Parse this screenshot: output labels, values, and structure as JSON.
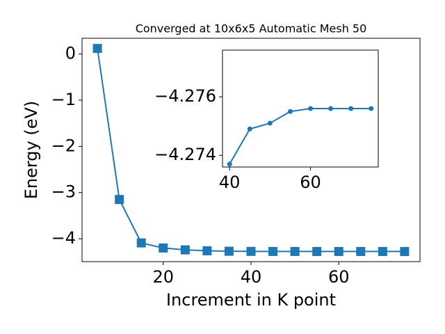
{
  "chart_data": [
    {
      "type": "line",
      "title": "Converged at 10x6x5 Automatic Mesh 50",
      "xlabel": "Increment in K point",
      "ylabel": "Energy (eV)",
      "marker": "square",
      "x": [
        5,
        10,
        15,
        20,
        25,
        30,
        35,
        40,
        45,
        50,
        55,
        60,
        65,
        70,
        75
      ],
      "series": [
        {
          "color": "#1f77b4",
          "values": [
            0.12,
            -3.15,
            -4.09,
            -4.2,
            -4.24,
            -4.26,
            -4.27,
            -4.2737,
            -4.2749,
            -4.2751,
            -4.2755,
            -4.2756,
            -4.2756,
            -4.2756,
            -4.2756
          ]
        }
      ],
      "xlim": [
        1.5,
        78.5
      ],
      "ylim": [
        -4.495,
        0.34
      ],
      "xticks": [
        20,
        40,
        60
      ],
      "yticks": [
        {
          "value": -4,
          "label": "−4"
        },
        {
          "value": -3,
          "label": "−3"
        },
        {
          "value": -2,
          "label": "−2"
        },
        {
          "value": -1,
          "label": "−1"
        },
        0
      ]
    },
    {
      "type": "line",
      "marker": "circle",
      "x": [
        40,
        45,
        50,
        55,
        60,
        65,
        70,
        75
      ],
      "series": [
        {
          "color": "#1f77b4",
          "values": [
            -4.2737,
            -4.2749,
            -4.2751,
            -4.2755,
            -4.2756,
            -4.2756,
            -4.2756,
            -4.2756
          ]
        }
      ],
      "xlim": [
        38.25,
        76.75
      ],
      "ylim": [
        -4.2736,
        -4.2776
      ],
      "xticks": [
        40,
        60
      ],
      "yticks": [
        {
          "value": -4.274,
          "label": "−4.274"
        },
        {
          "value": -4.276,
          "label": "−4.276"
        }
      ]
    }
  ]
}
